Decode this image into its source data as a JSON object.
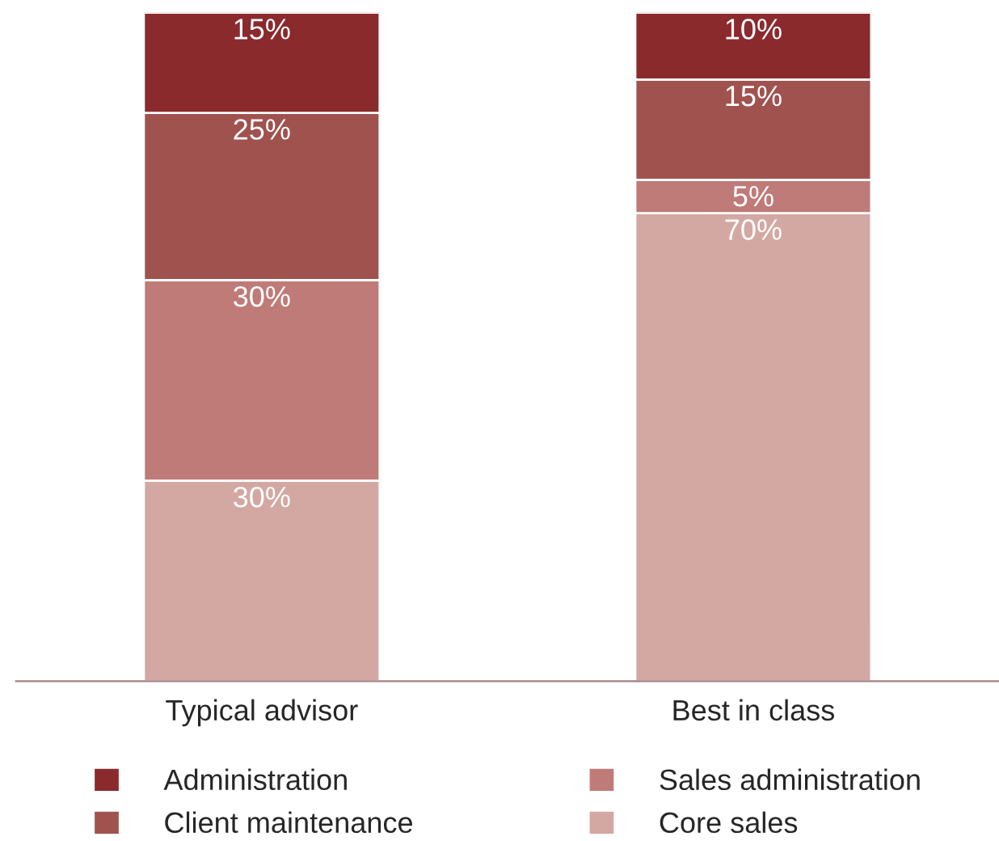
{
  "chart_data": {
    "type": "bar",
    "stacked": true,
    "categories": [
      "Typical advisor",
      "Best in class"
    ],
    "ylim": [
      0,
      100
    ],
    "tick_labels": "x",
    "grid": false,
    "legend": "bottom",
    "series": [
      {
        "name": "Core sales",
        "color": "#d4a8a2",
        "values": [
          30,
          70
        ],
        "value_labels": [
          "30%",
          "70%"
        ]
      },
      {
        "name": "Sales administration",
        "color": "#bf7b78",
        "values": [
          30,
          5
        ],
        "value_labels": [
          "30%",
          "5%"
        ]
      },
      {
        "name": "Client maintenance",
        "color": "#a0524f",
        "values": [
          25,
          15
        ],
        "value_labels": [
          "25%",
          "15%"
        ]
      },
      {
        "name": "Administration",
        "color": "#8b2a2d",
        "values": [
          15,
          10
        ],
        "value_labels": [
          "15%",
          "10%"
        ]
      }
    ]
  }
}
